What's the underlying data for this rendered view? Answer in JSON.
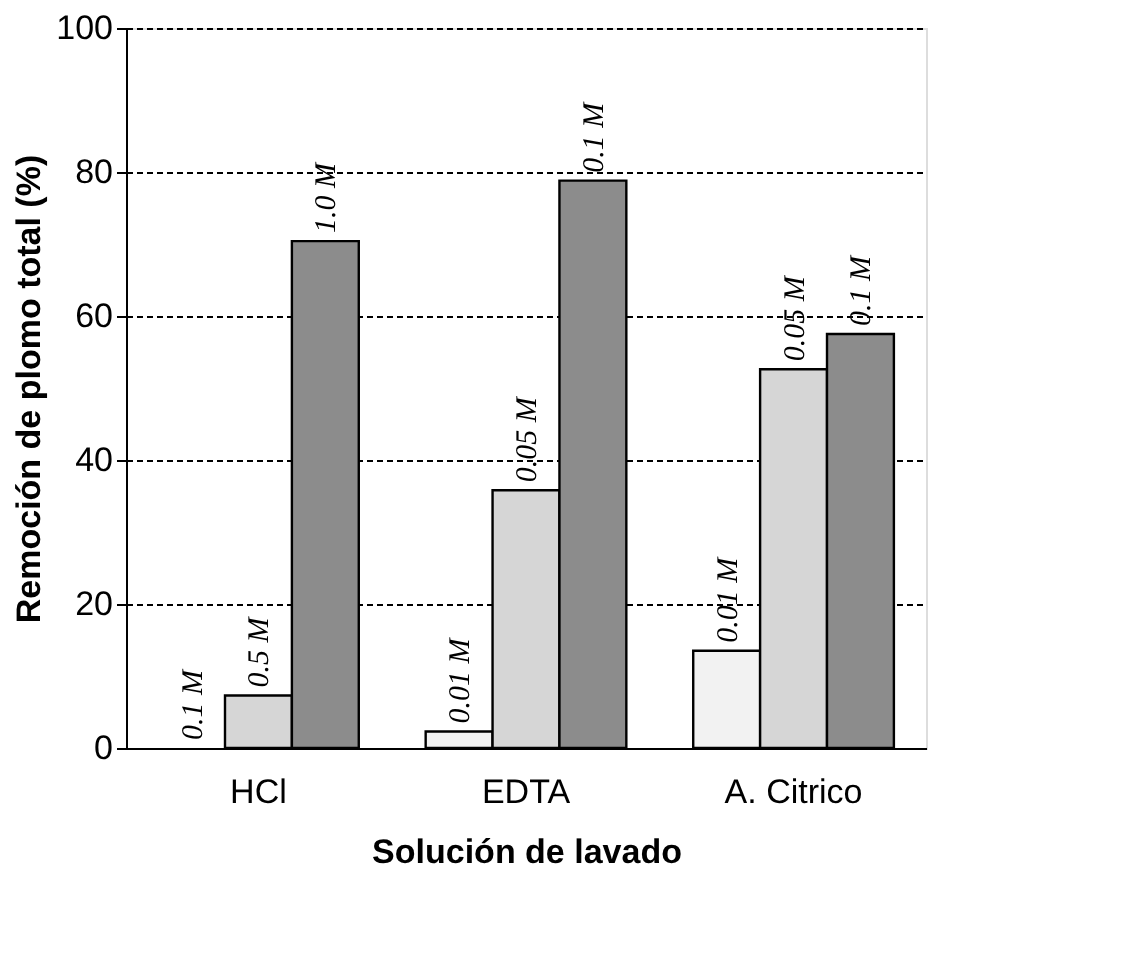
{
  "chart_data": {
    "type": "bar",
    "xlabel": "Solución de lavado",
    "ylabel": "Remoción de plomo total (%)",
    "categories": [
      "HCl",
      "EDTA",
      "A. Citrico"
    ],
    "series": [
      {
        "color": "#f2f2f2",
        "values": [
          0,
          2.3,
          13.5
        ]
      },
      {
        "color": "#d6d6d6",
        "values": [
          7.3,
          35.8,
          52.6
        ]
      },
      {
        "color": "#8c8c8c",
        "values": [
          70.4,
          78.8,
          57.5
        ]
      }
    ],
    "annotations": [
      "0.1 M",
      "0.5 M",
      "1.0 M",
      "0.01 M",
      "0.05 M",
      "0.1 M",
      "0.01 M",
      "0.05 M",
      "0.1 M"
    ],
    "ylim": [
      0,
      100
    ],
    "yticks": [
      0,
      20,
      40,
      60,
      80,
      100
    ],
    "grid": "y",
    "legend": false
  }
}
